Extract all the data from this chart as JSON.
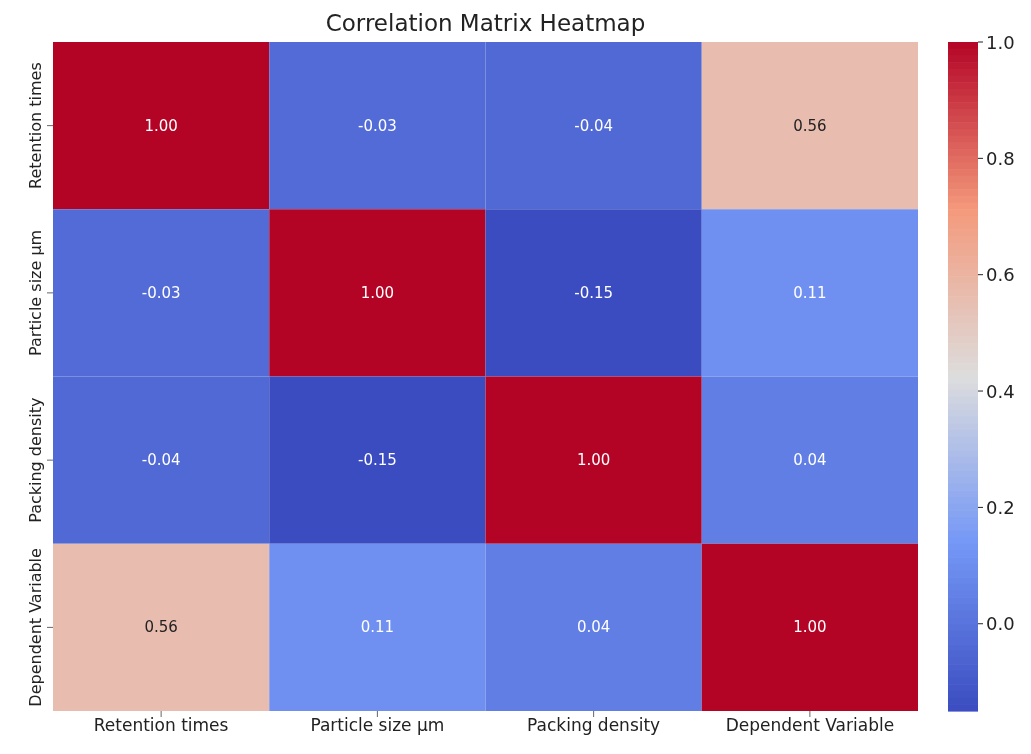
{
  "chart_data": {
    "type": "heatmap",
    "title": "Correlation Matrix Heatmap",
    "categories": [
      "Retention times",
      "Particle size µm",
      "Packing density",
      "Dependent Variable"
    ],
    "y_categories": [
      "Retention times",
      "Particle size µm",
      "Packing density",
      "Dependent Variable"
    ],
    "cells": [
      [
        1.0,
        -0.03,
        -0.04,
        0.56
      ],
      [
        -0.03,
        1.0,
        -0.15,
        0.11
      ],
      [
        -0.04,
        -0.15,
        1.0,
        0.04
      ],
      [
        0.56,
        0.11,
        0.04,
        1.0
      ]
    ],
    "cell_labels": [
      [
        "1.00",
        "-0.03",
        "-0.04",
        "0.56"
      ],
      [
        "-0.03",
        "1.00",
        "-0.15",
        "0.11"
      ],
      [
        "-0.04",
        "-0.15",
        "1.00",
        "0.04"
      ],
      [
        "0.56",
        "0.11",
        "0.04",
        "1.00"
      ]
    ],
    "clim": [
      -0.15,
      1.0
    ],
    "cticks": [
      {
        "value": 0,
        "label": "0.0"
      },
      {
        "value": 0.2,
        "label": "0.2"
      },
      {
        "value": 0.4,
        "label": "0.4"
      },
      {
        "value": 0.6,
        "label": "0.6"
      },
      {
        "value": 0.8,
        "label": "0.8"
      },
      {
        "value": 1,
        "label": "1.0"
      }
    ]
  }
}
